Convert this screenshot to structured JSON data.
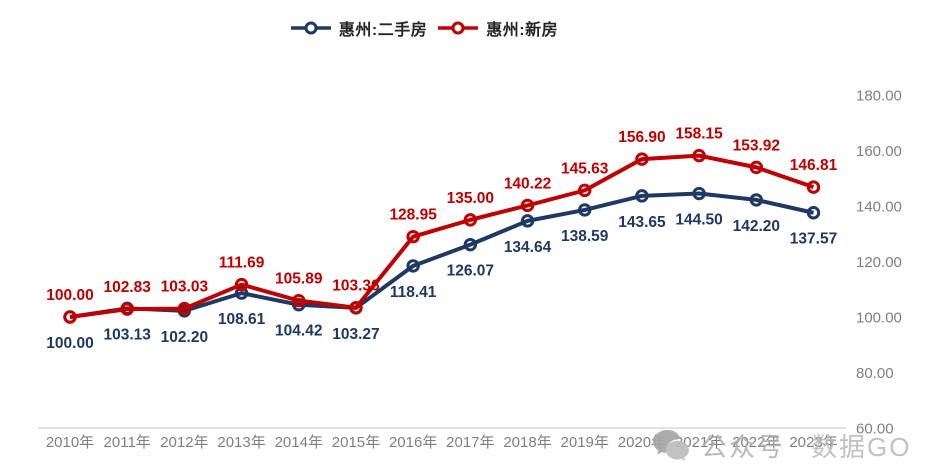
{
  "legend": {
    "items": [
      {
        "name": "惠州:二手房"
      },
      {
        "name": "惠州:新房"
      }
    ]
  },
  "chart_data": {
    "type": "line",
    "categories": [
      "2010年",
      "2011年",
      "2012年",
      "2013年",
      "2014年",
      "2015年",
      "2016年",
      "2017年",
      "2018年",
      "2019年",
      "2020年",
      "2021年",
      "2022年",
      "2023年"
    ],
    "series": [
      {
        "name": "惠州:二手房",
        "color": "#1F3864",
        "marker": "open-circle",
        "label_position": "below",
        "values": [
          100.0,
          103.13,
          102.2,
          108.61,
          104.42,
          103.27,
          118.41,
          126.07,
          134.64,
          138.59,
          143.65,
          144.5,
          142.2,
          137.57
        ]
      },
      {
        "name": "惠州:新房",
        "color": "#C00000",
        "marker": "open-circle",
        "label_position": "above",
        "values": [
          100.0,
          102.83,
          103.03,
          111.69,
          105.89,
          103.36,
          128.95,
          135.0,
          140.22,
          145.63,
          156.9,
          158.15,
          153.92,
          146.81
        ]
      }
    ],
    "title": "",
    "xlabel": "",
    "ylabel": "",
    "ylim": [
      60,
      180
    ],
    "y_ticks": [
      180,
      160,
      140,
      120,
      100,
      80,
      60
    ],
    "y_tick_decimals": 2,
    "value_label_decimals": 2,
    "grid": false,
    "legend_position": "top-center",
    "y_axis_side": "right",
    "axis_line_color": "#D9D9D9",
    "tick_label_color": "#7F7F7F"
  },
  "watermark": {
    "icon": "wechat-official-account-icon",
    "label": "公众号",
    "brand": "数据GO"
  }
}
